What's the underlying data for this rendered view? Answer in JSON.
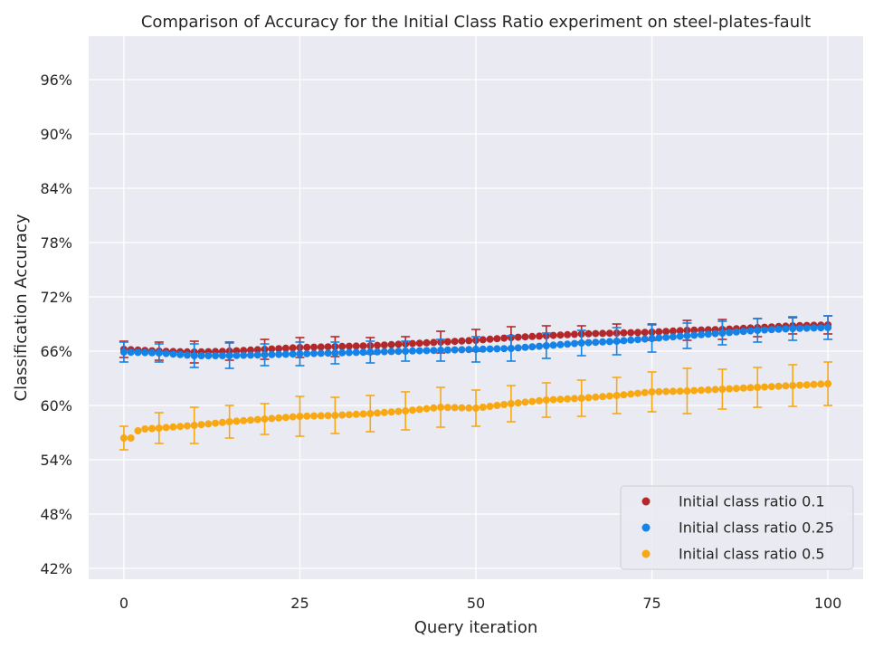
{
  "chart_data": {
    "type": "scatter",
    "title": "Comparison of Accuracy for the Initial Class Ratio experiment on steel-plates-fault",
    "xlabel": "Query iteration",
    "ylabel": "Classification Accuracy",
    "xlim": [
      -5,
      105
    ],
    "ylim": [
      40.8,
      100.8
    ],
    "x_ticks": [
      0,
      25,
      50,
      75,
      100
    ],
    "x_tick_labels": [
      "0",
      "25",
      "50",
      "75",
      "100"
    ],
    "y_ticks": [
      42,
      48,
      54,
      60,
      66,
      72,
      78,
      84,
      90,
      96
    ],
    "y_tick_labels": [
      "42%",
      "48%",
      "54%",
      "60%",
      "66%",
      "72%",
      "78%",
      "84%",
      "90%",
      "96%"
    ],
    "grid": true,
    "legend_position": "bottom-right",
    "error_bar_every": 5,
    "series": [
      {
        "name": "Initial class ratio 0.1",
        "color": "#b2282b",
        "anchors_x": [
          0,
          5,
          10,
          15,
          20,
          25,
          30,
          35,
          40,
          45,
          50,
          55,
          60,
          65,
          70,
          75,
          80,
          85,
          90,
          95,
          100
        ],
        "anchors_y": [
          66.2,
          66.0,
          65.9,
          66.0,
          66.2,
          66.4,
          66.5,
          66.6,
          66.8,
          67.0,
          67.2,
          67.5,
          67.7,
          67.9,
          68.0,
          68.1,
          68.3,
          68.4,
          68.6,
          68.8,
          68.9
        ],
        "err": [
          0.9,
          1.0,
          1.2,
          1.0,
          1.1,
          1.1,
          1.1,
          0.9,
          0.8,
          1.2,
          1.2,
          1.2,
          1.1,
          0.9,
          1.0,
          0.9,
          1.1,
          1.1,
          1.0,
          0.9,
          1.0
        ]
      },
      {
        "name": "Initial class ratio 0.25",
        "color": "#1482e6",
        "anchors_x": [
          0,
          5,
          10,
          15,
          20,
          25,
          30,
          35,
          40,
          45,
          50,
          55,
          60,
          65,
          70,
          75,
          80,
          85,
          90,
          95,
          100
        ],
        "anchors_y": [
          65.9,
          65.8,
          65.5,
          65.5,
          65.6,
          65.7,
          65.8,
          65.9,
          66.0,
          66.1,
          66.2,
          66.3,
          66.6,
          66.9,
          67.1,
          67.4,
          67.7,
          68.0,
          68.3,
          68.5,
          68.6
        ],
        "err": [
          1.1,
          1.0,
          1.3,
          1.4,
          1.2,
          1.3,
          1.2,
          1.2,
          1.1,
          1.2,
          1.4,
          1.4,
          1.4,
          1.4,
          1.5,
          1.5,
          1.4,
          1.3,
          1.3,
          1.3,
          1.3
        ]
      },
      {
        "name": "Initial class ratio 0.5",
        "color": "#f7a813",
        "anchors_x": [
          0,
          1,
          2,
          3,
          5,
          10,
          15,
          20,
          25,
          30,
          35,
          40,
          45,
          50,
          55,
          60,
          65,
          70,
          75,
          80,
          85,
          90,
          95,
          100
        ],
        "anchors_y": [
          56.4,
          56.4,
          57.2,
          57.4,
          57.5,
          57.8,
          58.2,
          58.5,
          58.8,
          58.9,
          59.1,
          59.4,
          59.8,
          59.7,
          60.2,
          60.6,
          60.8,
          61.1,
          61.5,
          61.6,
          61.8,
          62.0,
          62.2,
          62.4
        ],
        "err": [
          1.3,
          1.3,
          1.5,
          1.6,
          1.7,
          2.0,
          1.8,
          1.7,
          2.2,
          2.0,
          2.0,
          2.1,
          2.2,
          2.0,
          2.0,
          1.9,
          2.0,
          2.0,
          2.2,
          2.5,
          2.2,
          2.2,
          2.3,
          2.4
        ]
      }
    ]
  }
}
